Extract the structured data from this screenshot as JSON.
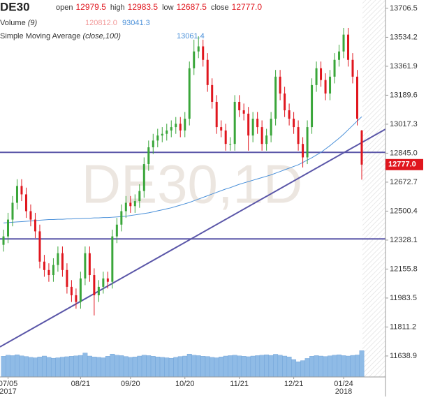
{
  "chart_data": {
    "type": "candlestick",
    "title": "DE30",
    "legend": {
      "labels": [
        "open",
        "high",
        "low",
        "close"
      ],
      "values": [
        "12979.5",
        "12983.5",
        "12687.5",
        "12777.0"
      ]
    },
    "volume_legend": {
      "name": "Volume",
      "params": "(9)",
      "values": [
        "120812.0",
        "93041.3"
      ]
    },
    "sma_legend": {
      "name": "Simple Moving Average",
      "params": "(close,100)",
      "value": "13061.4"
    },
    "watermark": "DE30,1D",
    "price_tag": "12777.0",
    "categories": [
      null,
      "07/05",
      null,
      null,
      null,
      null,
      null,
      null,
      null,
      null,
      null,
      null,
      null,
      null,
      null,
      null,
      null,
      "08/21",
      null,
      null,
      null,
      null,
      null,
      null,
      null,
      null,
      null,
      null,
      "09/20",
      null,
      null,
      null,
      null,
      null,
      null,
      null,
      null,
      null,
      null,
      null,
      "10/20",
      null,
      null,
      null,
      null,
      null,
      null,
      null,
      null,
      null,
      null,
      null,
      "11/21",
      null,
      null,
      null,
      null,
      null,
      null,
      null,
      null,
      null,
      null,
      null,
      "12/21",
      null,
      null,
      null,
      null,
      null,
      null,
      null,
      null,
      null,
      null,
      "01/24",
      null,
      null,
      null,
      null
    ],
    "category_years": [
      null,
      "2017",
      null,
      null,
      null,
      null,
      null,
      null,
      null,
      null,
      null,
      null,
      null,
      null,
      null,
      null,
      null,
      null,
      null,
      null,
      null,
      null,
      null,
      null,
      null,
      null,
      null,
      null,
      null,
      null,
      null,
      null,
      null,
      null,
      null,
      null,
      null,
      null,
      null,
      null,
      null,
      null,
      null,
      null,
      null,
      null,
      null,
      null,
      null,
      null,
      null,
      null,
      null,
      null,
      null,
      null,
      null,
      null,
      null,
      null,
      null,
      null,
      null,
      null,
      null,
      null,
      null,
      null,
      null,
      null,
      null,
      null,
      null,
      null,
      null,
      "2018",
      null,
      null,
      null,
      null
    ],
    "open": [
      12300,
      12350,
      12450,
      12550,
      12650,
      12600,
      12500,
      12450,
      12380,
      12200,
      12150,
      12120,
      12180,
      12250,
      12150,
      12050,
      12000,
      11960,
      12100,
      12250,
      12120,
      12000,
      12050,
      12100,
      12080,
      12350,
      12420,
      12500,
      12550,
      12530,
      12560,
      12620,
      12780,
      12880,
      12920,
      12950,
      12960,
      12980,
      13000,
      13020,
      12980,
      13050,
      13350,
      13450,
      13480,
      13400,
      13250,
      13150,
      13000,
      12980,
      12900,
      12900,
      13150,
      13100,
      13080,
      12950,
      13050,
      13000,
      12900,
      12950,
      13050,
      13300,
      13200,
      13100,
      13050,
      13000,
      12900,
      12820,
      13000,
      13250,
      13350,
      13280,
      13200,
      13300,
      13400,
      13450,
      13550,
      13400,
      13300,
      12979.5
    ],
    "high": [
      12390,
      12490,
      12590,
      12690,
      12690,
      12640,
      12540,
      12490,
      12420,
      12240,
      12190,
      12220,
      12290,
      12290,
      12190,
      12090,
      12040,
      12140,
      12290,
      12290,
      12160,
      12090,
      12140,
      12140,
      12390,
      12460,
      12540,
      12590,
      12590,
      12600,
      12660,
      12820,
      12920,
      12960,
      12990,
      13000,
      13020,
      13040,
      13060,
      13060,
      13090,
      13390,
      13520,
      13540,
      13520,
      13440,
      13290,
      13190,
      13040,
      13020,
      12940,
      13190,
      13190,
      13140,
      13120,
      13090,
      13090,
      13040,
      12990,
      13090,
      13340,
      13340,
      13240,
      13140,
      13090,
      13040,
      12940,
      13040,
      13290,
      13390,
      13390,
      13320,
      13340,
      13440,
      13490,
      13590,
      13590,
      13440,
      13340,
      12983.5
    ],
    "low": [
      12260,
      12310,
      12410,
      12510,
      12560,
      12460,
      12410,
      12340,
      12160,
      12110,
      12080,
      12080,
      12140,
      12110,
      12010,
      11960,
      11920,
      11920,
      12060,
      12080,
      11880,
      11960,
      12010,
      12040,
      12040,
      12310,
      12380,
      12460,
      12490,
      12490,
      12520,
      12580,
      12740,
      12840,
      12880,
      12910,
      12920,
      12940,
      12960,
      12940,
      12940,
      13010,
      13310,
      13410,
      13360,
      13210,
      13110,
      12960,
      12940,
      12860,
      12860,
      12860,
      13060,
      13040,
      12860,
      12910,
      12960,
      12860,
      12860,
      12910,
      13010,
      13160,
      13060,
      13010,
      12960,
      12860,
      12760,
      12780,
      12960,
      13210,
      13240,
      13160,
      13160,
      13260,
      13360,
      13410,
      13360,
      13260,
      13010,
      12687.5
    ],
    "close": [
      12350,
      12450,
      12550,
      12650,
      12600,
      12500,
      12450,
      12380,
      12200,
      12150,
      12120,
      12180,
      12250,
      12150,
      12050,
      12000,
      11960,
      12100,
      12250,
      12120,
      12000,
      12050,
      12100,
      12080,
      12350,
      12420,
      12500,
      12550,
      12530,
      12560,
      12620,
      12780,
      12880,
      12920,
      12950,
      12960,
      12980,
      13000,
      13020,
      12980,
      13050,
      13350,
      13450,
      13480,
      13400,
      13250,
      13150,
      13000,
      12980,
      12900,
      12900,
      13150,
      13100,
      13080,
      12950,
      13050,
      13000,
      12900,
      12950,
      13050,
      13300,
      13200,
      13100,
      13050,
      13000,
      12900,
      12820,
      13000,
      13250,
      13350,
      13280,
      13200,
      13300,
      13400,
      13450,
      13550,
      13400,
      13300,
      13050,
      12777
    ],
    "volume": [
      95000,
      100000,
      98000,
      102000,
      97000,
      94000,
      90000,
      88000,
      92000,
      96000,
      90000,
      86000,
      88000,
      91000,
      93000,
      95000,
      97000,
      99000,
      110000,
      96000,
      92000,
      90000,
      88000,
      95000,
      105000,
      100000,
      98000,
      94000,
      90000,
      92000,
      96000,
      100000,
      98000,
      95000,
      92000,
      90000,
      88000,
      86000,
      90000,
      94000,
      96000,
      105000,
      100000,
      98000,
      95000,
      94000,
      90000,
      88000,
      92000,
      96000,
      98000,
      100000,
      97000,
      95000,
      93000,
      96000,
      98000,
      100000,
      102000,
      99000,
      104000,
      100000,
      96000,
      92000,
      80000,
      70000,
      75000,
      85000,
      95000,
      98000,
      96000,
      94000,
      97000,
      100000,
      102000,
      98000,
      96000,
      99000,
      101000,
      120812
    ],
    "volume_ylim": [
      0,
      160000
    ],
    "sma": [
      12430,
      12432,
      12434,
      12436,
      12438,
      12440,
      12442,
      12444,
      12446,
      12448,
      12450,
      12450,
      12452,
      12452,
      12454,
      12454,
      12456,
      12456,
      12458,
      12458,
      12460,
      12460,
      12462,
      12462,
      12464,
      12466,
      12468,
      12470,
      12474,
      12478,
      12482,
      12486,
      12490,
      12496,
      12502,
      12508,
      12514,
      12520,
      12528,
      12536,
      12544,
      12552,
      12562,
      12572,
      12582,
      12592,
      12602,
      12612,
      12622,
      12632,
      12640,
      12650,
      12660,
      12668,
      12676,
      12684,
      12692,
      12700,
      12708,
      12716,
      12726,
      12736,
      12746,
      12756,
      12766,
      12776,
      12790,
      12804,
      12818,
      12834,
      12850,
      12870,
      12890,
      12912,
      12934,
      12958,
      12984,
      13010,
      13036,
      13061.4
    ],
    "trend_lines": [
      [
        12850,
        12850
      ],
      [
        12335,
        12335
      ],
      [
        11693,
        12988
      ]
    ],
    "ylim": [
      11514,
      13756
    ],
    "yticks": [
      13706.5,
      13534.2,
      13361.9,
      13189.6,
      13017.3,
      {
        "value": 12845.0,
        "label": "12845.0"
      },
      12672.7,
      12500.4,
      12328.1,
      12155.8,
      11983.5,
      11811.2,
      11638.9
    ],
    "colors": {
      "up": "#3aa63a",
      "down": "#e0161e",
      "volume": "#8fbbe6",
      "sma": "#4a90d9",
      "trend": "#5a56a8",
      "value": "#e0161e"
    }
  }
}
